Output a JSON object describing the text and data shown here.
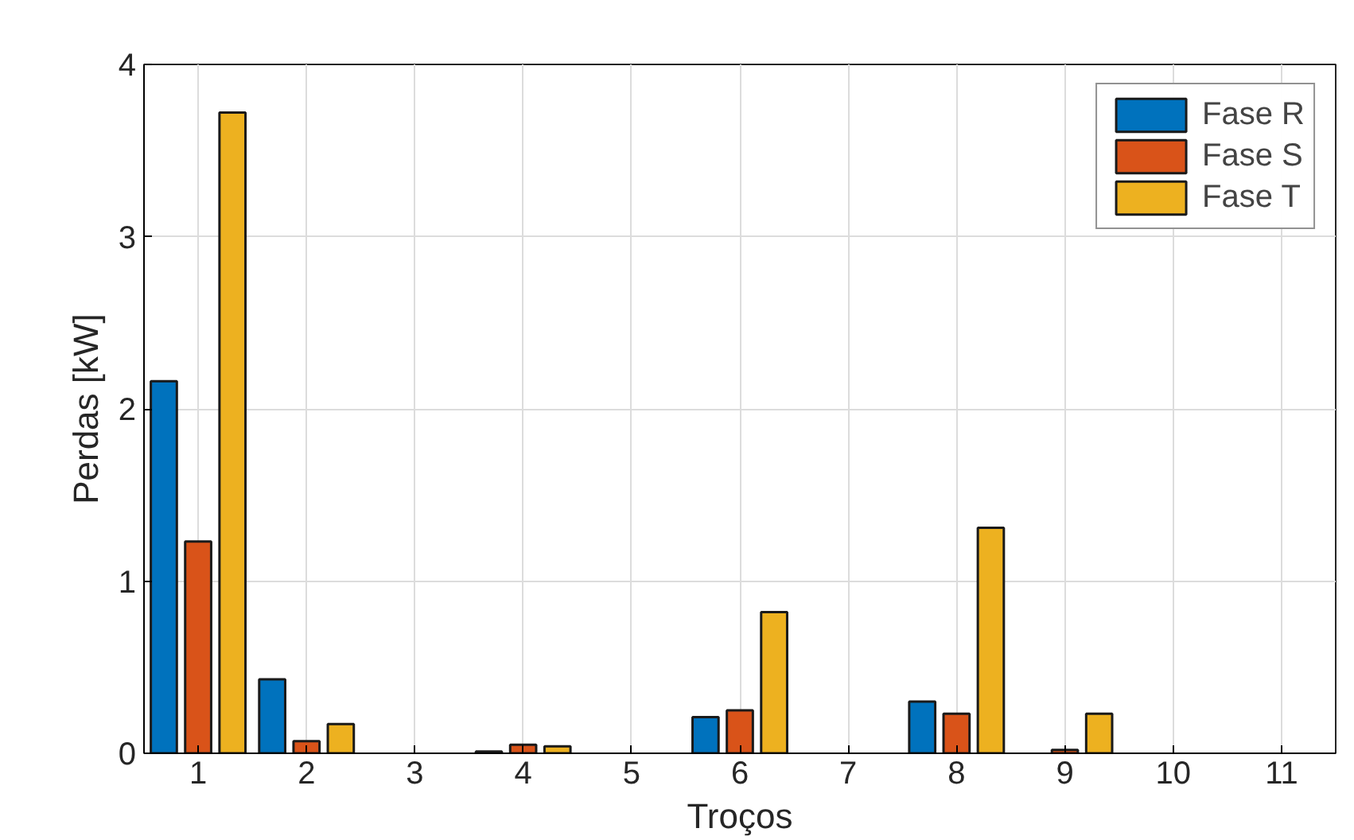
{
  "chart_data": {
    "type": "bar",
    "xlabel": "Troços",
    "ylabel": "Perdas [kW]",
    "categories": [
      "1",
      "2",
      "3",
      "4",
      "5",
      "6",
      "7",
      "8",
      "9",
      "10",
      "11"
    ],
    "series": [
      {
        "name": "Fase R",
        "color": "#0072bd",
        "values": [
          2.16,
          0.43,
          0,
          0.01,
          0,
          0.21,
          0,
          0.3,
          0,
          0,
          0
        ]
      },
      {
        "name": "Fase S",
        "color": "#d95319",
        "values": [
          1.23,
          0.07,
          0,
          0.05,
          0,
          0.25,
          0,
          0.23,
          0.02,
          0,
          0
        ]
      },
      {
        "name": "Fase T",
        "color": "#edb120",
        "values": [
          3.72,
          0.17,
          0,
          0.04,
          0,
          0.82,
          0,
          1.31,
          0.23,
          0,
          0
        ]
      }
    ],
    "ylim": [
      0,
      4
    ],
    "yticks": [
      0,
      1,
      2,
      3,
      4
    ],
    "grid": true,
    "legend": "top right"
  }
}
